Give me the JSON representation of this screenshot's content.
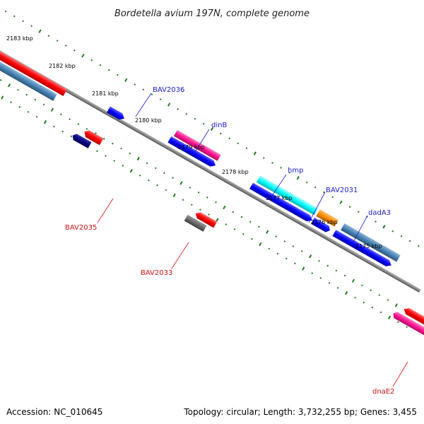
{
  "title": "Bordetella avium 197N, complete genome",
  "footer": {
    "accession": "Accession: NC_010645",
    "topology": "Topology: circular; Length: 3,732,255 bp; Genes: 3,455"
  },
  "kbp_labels": [
    "2183 kbp",
    "2182 kbp",
    "2181 kbp",
    "2180 kbp",
    "2179 kbp",
    "2178 kbp",
    "2177 kbp",
    "2176 kbp",
    "2175 kbp"
  ],
  "gene_labels": {
    "bav2036": "BAV2036",
    "dinb": "dinB",
    "hmp": "hmp",
    "bav2031": "BAV2031",
    "dada3": "dadA3",
    "bav2035": "BAV2035",
    "bav2033": "BAV2033",
    "dnae2": "dnaE2"
  },
  "colors": {
    "backbone": "#8a8a8a",
    "red": "#ff0000",
    "steelblue": "#4682b4",
    "blue": "#0000ff",
    "navy": "#000080",
    "pink": "#ff1493",
    "cyan": "#00ffff",
    "orange": "#ff8c00",
    "gray": "#696969",
    "tick_green": "#1e7b1e",
    "label_blue": "#1a1acc",
    "label_red": "#cc1111"
  }
}
